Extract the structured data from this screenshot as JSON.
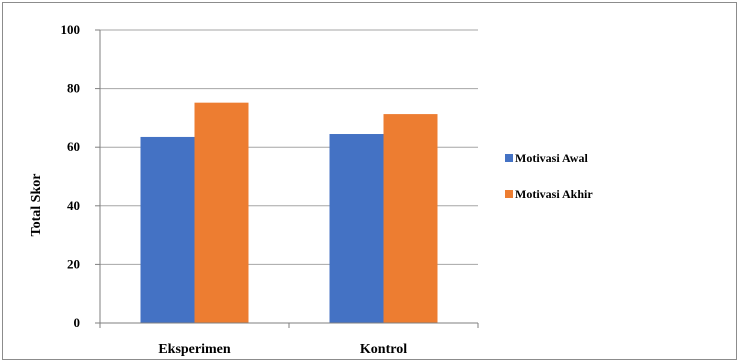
{
  "chart_data": {
    "type": "bar",
    "categories": [
      "Eksperimen",
      "Kontrol"
    ],
    "series": [
      {
        "name": "Motivasi Awal",
        "values": [
          63.5,
          64.5
        ],
        "color": "#4472c4"
      },
      {
        "name": "Motivasi Akhir",
        "values": [
          75.2,
          71.3
        ],
        "color": "#ed7d31"
      }
    ],
    "ylabel": "Total Skor",
    "xlabel": "",
    "ylim": [
      0,
      100
    ],
    "yticks": [
      0,
      20,
      40,
      60,
      80,
      100
    ],
    "grid": true,
    "legend": "right"
  }
}
